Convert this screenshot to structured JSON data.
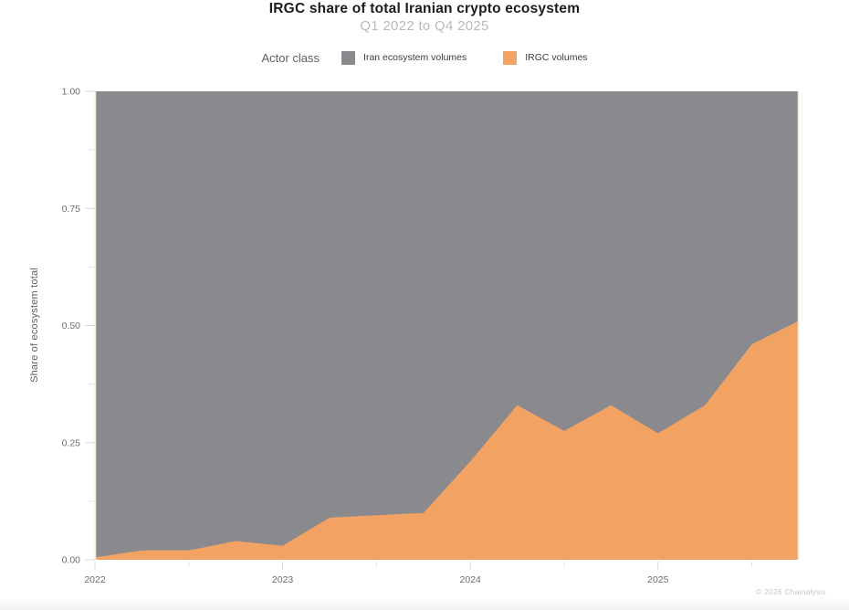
{
  "title": "IRGC share of total Iranian crypto ecosystem",
  "subtitle": "Q1 2022 to Q4 2025",
  "legend": {
    "label": "Actor class",
    "items": [
      {
        "label": "Iran ecosystem volumes",
        "color": "#8a8a8e"
      },
      {
        "label": "IRGC volumes",
        "color": "#f2a364"
      }
    ]
  },
  "y_axis": {
    "label": "Share of ecosystem total",
    "ticks": [
      {
        "label": "1.00",
        "value": 1.0
      },
      {
        "label": "0.75",
        "value": 0.75
      },
      {
        "label": "0.50",
        "value": 0.5
      },
      {
        "label": "0.25",
        "value": 0.25
      },
      {
        "label": "0.00",
        "value": 0.0
      }
    ],
    "minor_tick_values": [
      0.875,
      0.625,
      0.375,
      0.125
    ]
  },
  "x_axis": {
    "ticks": [
      {
        "label": "2022",
        "quarter_index": 0
      },
      {
        "label": "2023",
        "quarter_index": 4
      },
      {
        "label": "2024",
        "quarter_index": 8
      },
      {
        "label": "2025",
        "quarter_index": 12
      }
    ],
    "minor_tick_quarter_indices": [
      2,
      6,
      10,
      14
    ]
  },
  "footer": {
    "copyright": "© 2026 Chainalysis"
  },
  "chart_data": {
    "type": "area",
    "stacked": true,
    "title": "IRGC share of total Iranian crypto ecosystem",
    "subtitle": "Q1 2022 to Q4 2025",
    "xlabel": "",
    "ylabel": "Share of ecosystem total",
    "ylim": [
      0,
      1
    ],
    "legend_position": "top",
    "grid": false,
    "x": [
      "Q1 2022",
      "Q2 2022",
      "Q3 2022",
      "Q4 2022",
      "Q1 2023",
      "Q2 2023",
      "Q3 2023",
      "Q4 2023",
      "Q1 2024",
      "Q2 2024",
      "Q3 2024",
      "Q4 2024",
      "Q1 2025",
      "Q2 2025",
      "Q3 2025",
      "Q4 2025"
    ],
    "series": [
      {
        "name": "IRGC volumes",
        "color": "#f2a364",
        "values": [
          0.005,
          0.02,
          0.02,
          0.04,
          0.03,
          0.09,
          0.095,
          0.1,
          0.21,
          0.33,
          0.275,
          0.33,
          0.27,
          0.33,
          0.46,
          0.51
        ]
      },
      {
        "name": "Iran ecosystem volumes",
        "color": "#8a8a8e",
        "values": [
          0.995,
          0.98,
          0.98,
          0.96,
          0.97,
          0.91,
          0.905,
          0.9,
          0.79,
          0.67,
          0.725,
          0.67,
          0.73,
          0.67,
          0.54,
          0.49
        ]
      }
    ]
  }
}
